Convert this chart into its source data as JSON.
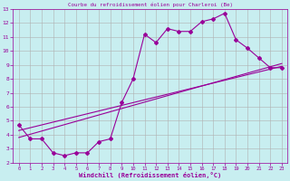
{
  "title": "Courbe du refroidissement éolien pour Charleroi (Be)",
  "xlabel": "Windchill (Refroidissement éolien,°C)",
  "bg_color": "#c8eef0",
  "line_color": "#990099",
  "marker": "D",
  "markersize": 2,
  "linewidth": 0.8,
  "xlim": [
    -0.5,
    23.5
  ],
  "ylim": [
    2,
    13
  ],
  "xticks": [
    0,
    1,
    2,
    3,
    4,
    5,
    6,
    7,
    8,
    9,
    10,
    11,
    12,
    13,
    14,
    15,
    16,
    17,
    18,
    19,
    20,
    21,
    22,
    23
  ],
  "yticks": [
    2,
    3,
    4,
    5,
    6,
    7,
    8,
    9,
    10,
    11,
    12,
    13
  ],
  "grid_color": "#b0b0b0",
  "series_x": [
    0,
    1,
    2,
    3,
    4,
    5,
    6,
    7,
    8,
    9,
    10,
    11,
    12,
    13,
    14,
    15,
    16,
    17,
    18,
    19,
    20,
    21,
    22,
    23
  ],
  "series_y": [
    4.7,
    3.7,
    3.7,
    2.7,
    2.5,
    2.7,
    2.7,
    3.5,
    3.7,
    6.3,
    8.0,
    11.2,
    10.6,
    11.6,
    11.4,
    11.4,
    12.1,
    12.3,
    12.7,
    10.8,
    10.2,
    9.5,
    8.8,
    8.8
  ],
  "line1_x": [
    0,
    23
  ],
  "line1_y": [
    4.3,
    8.9
  ],
  "line2_x": [
    0,
    23
  ],
  "line2_y": [
    3.8,
    9.1
  ]
}
